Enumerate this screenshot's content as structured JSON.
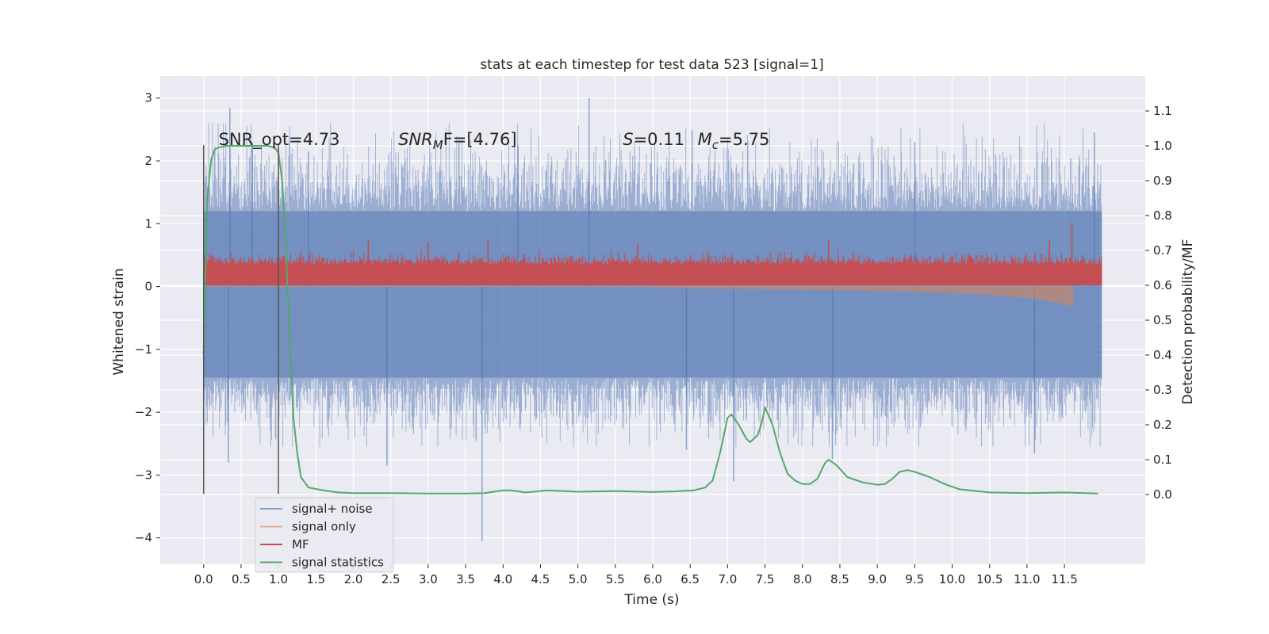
{
  "chart_data": {
    "type": "line",
    "title": "stats at each timestep for test data 523 [signal=1]",
    "xlabel": "Time (s)",
    "ylabel": "Whitened strain",
    "ylabel_right": "Detection probability/MF",
    "xlim": [
      -0.58,
      12.58
    ],
    "ylim": [
      -4.42,
      3.35
    ],
    "ylim_right": [
      -0.2,
      1.2
    ],
    "x_ticks": [
      0.0,
      0.5,
      1.0,
      1.5,
      2.0,
      2.5,
      3.0,
      3.5,
      4.0,
      4.5,
      5.0,
      5.5,
      6.0,
      6.5,
      7.0,
      7.5,
      8.0,
      8.5,
      9.0,
      9.5,
      10.0,
      10.5,
      11.0,
      11.5
    ],
    "x_tick_labels": [
      "0.0",
      "0.5",
      "1.0",
      "1.5",
      "2.0",
      "2.5",
      "3.0",
      "3.5",
      "4.0",
      "4.5",
      "5.0",
      "5.5",
      "6.0",
      "6.5",
      "7.0",
      "7.5",
      "8.0",
      "8.5",
      "9.0",
      "9.5",
      "10.0",
      "10.5",
      "11.0",
      "11.5"
    ],
    "y_ticks": [
      -4,
      -3,
      -2,
      -1,
      0,
      1,
      2,
      3
    ],
    "y_tick_labels": [
      "−4",
      "−3",
      "−2",
      "−1",
      "0",
      "1",
      "2",
      "3"
    ],
    "y_right_ticks": [
      0.0,
      0.1,
      0.2,
      0.3,
      0.4,
      0.5,
      0.6,
      0.7,
      0.8,
      0.9,
      1.0,
      1.1
    ],
    "y_right_tick_labels": [
      "0.0",
      "0.1",
      "0.2",
      "0.3",
      "0.4",
      "0.5",
      "0.6",
      "0.7",
      "0.8",
      "0.9",
      "1.0",
      "1.1"
    ],
    "grid": true,
    "legend_position": "lower-left",
    "annotations": [
      {
        "text": "SNR_opt=4.73",
        "x": 0.2,
        "y": 2.25,
        "math": false
      },
      {
        "pre": "SNR",
        "sub": "M",
        "post": "F=[4.76]",
        "x": 2.6,
        "y": 2.25,
        "math": true
      },
      {
        "pre": "S",
        "sub": "",
        "post": "=0.11",
        "x": 5.6,
        "y": 2.25,
        "math": true
      },
      {
        "pre": "M",
        "sub": "c",
        "post": "=5.75",
        "x": 6.6,
        "y": 2.25,
        "math": true
      }
    ],
    "vlines": [
      {
        "x": 0.0,
        "y_min": -3.3,
        "y_max": 2.25,
        "color": "#555555"
      },
      {
        "x": 1.0,
        "y_min": -3.3,
        "y_max": 2.25,
        "color": "#555555"
      }
    ],
    "series": [
      {
        "name": "signal+ noise",
        "axis": "left",
        "color": "#4c72b0",
        "x_range": [
          0.0,
          12.0
        ],
        "typical_range": [
          -1.45,
          1.2
        ],
        "extremes": [
          {
            "x": 0.35,
            "y": 2.85
          },
          {
            "x": 0.33,
            "y": -2.8
          },
          {
            "x": 2.45,
            "y": -2.85
          },
          {
            "x": 3.72,
            "y": -4.05
          },
          {
            "x": 5.15,
            "y": 3.0
          },
          {
            "x": 6.45,
            "y": -2.6
          },
          {
            "x": 7.08,
            "y": -3.1
          },
          {
            "x": 8.4,
            "y": -2.75
          },
          {
            "x": 11.1,
            "y": -2.65
          },
          {
            "x": 11.9,
            "y": 2.45
          },
          {
            "x": 0.65,
            "y": 2.3
          },
          {
            "x": 1.4,
            "y": 2.15
          },
          {
            "x": 4.2,
            "y": 2.25
          },
          {
            "x": 9.5,
            "y": 2.3
          }
        ]
      },
      {
        "name": "signal only",
        "axis": "left",
        "color": "#dd8452",
        "x_range": [
          0.0,
          11.62
        ],
        "envelope": [
          {
            "x": 6.0,
            "y": -0.02
          },
          {
            "x": 8.0,
            "y": -0.05
          },
          {
            "x": 9.0,
            "y": -0.07
          },
          {
            "x": 10.0,
            "y": -0.1
          },
          {
            "x": 10.5,
            "y": -0.13
          },
          {
            "x": 11.0,
            "y": -0.18
          },
          {
            "x": 11.4,
            "y": -0.25
          },
          {
            "x": 11.55,
            "y": -0.3
          },
          {
            "x": 11.62,
            "y": -0.3
          }
        ]
      },
      {
        "name": "MF",
        "axis": "right",
        "color": "#c44e52",
        "x_range": [
          0.0,
          12.0
        ],
        "typical_range": [
          0.6,
          0.695
        ],
        "peaks": [
          {
            "x": 1.0,
            "y": 0.73
          },
          {
            "x": 2.2,
            "y": 0.73
          },
          {
            "x": 3.0,
            "y": 0.725
          },
          {
            "x": 3.8,
            "y": 0.73
          },
          {
            "x": 5.8,
            "y": 0.72
          },
          {
            "x": 8.35,
            "y": 0.73
          },
          {
            "x": 11.6,
            "y": 0.78
          },
          {
            "x": 11.3,
            "y": 0.73
          }
        ]
      },
      {
        "name": "signal statistics",
        "axis": "right",
        "color": "#55a868",
        "x": [
          0.0,
          0.05,
          0.1,
          0.15,
          0.2,
          0.3,
          0.5,
          0.7,
          0.85,
          0.95,
          1.0,
          1.05,
          1.1,
          1.15,
          1.2,
          1.25,
          1.3,
          1.4,
          1.6,
          1.8,
          2.0,
          2.5,
          3.0,
          3.5,
          3.75,
          4.0,
          4.1,
          4.3,
          4.6,
          5.0,
          5.5,
          6.0,
          6.3,
          6.55,
          6.7,
          6.8,
          6.9,
          7.0,
          7.05,
          7.15,
          7.25,
          7.3,
          7.4,
          7.45,
          7.5,
          7.6,
          7.7,
          7.8,
          7.9,
          8.0,
          8.1,
          8.2,
          8.3,
          8.35,
          8.45,
          8.6,
          8.8,
          9.0,
          9.1,
          9.2,
          9.3,
          9.4,
          9.5,
          9.7,
          9.9,
          10.1,
          10.5,
          11.0,
          11.5,
          11.95
        ],
        "values": [
          0.4,
          0.85,
          0.96,
          0.99,
          0.995,
          1.0,
          1.0,
          1.0,
          1.0,
          0.995,
          0.98,
          0.9,
          0.7,
          0.45,
          0.22,
          0.12,
          0.05,
          0.02,
          0.012,
          0.006,
          0.004,
          0.004,
          0.003,
          0.003,
          0.004,
          0.012,
          0.012,
          0.006,
          0.012,
          0.008,
          0.01,
          0.007,
          0.009,
          0.012,
          0.02,
          0.04,
          0.12,
          0.22,
          0.23,
          0.2,
          0.16,
          0.15,
          0.17,
          0.2,
          0.25,
          0.2,
          0.12,
          0.06,
          0.04,
          0.03,
          0.03,
          0.045,
          0.09,
          0.1,
          0.085,
          0.05,
          0.035,
          0.028,
          0.03,
          0.045,
          0.065,
          0.07,
          0.065,
          0.05,
          0.03,
          0.015,
          0.006,
          0.004,
          0.006,
          0.003
        ]
      }
    ]
  }
}
